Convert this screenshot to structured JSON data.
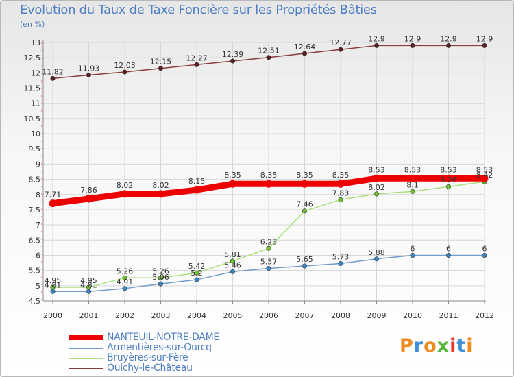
{
  "title": "Evolution du Taux de Taxe Foncière sur les Propriétés Bâties",
  "unit": "(en %)",
  "brand": {
    "text": "Proxiti",
    "letter_colors": [
      "#f08a1e",
      "#3f8fd6",
      "#f08a1e",
      "#58b63a",
      "#e8322b",
      "#3f8fd6",
      "#f08a1e"
    ]
  },
  "chart_data": {
    "type": "line",
    "title": "Evolution du Taux de Taxe Foncière sur les Propriétés Bâties",
    "ylabel": "(en %)",
    "xlabel": "",
    "x": [
      "2000",
      "2001",
      "2002",
      "2003",
      "2004",
      "2005",
      "2006",
      "2007",
      "2008",
      "2009",
      "2010",
      "2011",
      "2012"
    ],
    "ylim": [
      4.5,
      13
    ],
    "yticks": [
      "4.5",
      "5",
      "5.5",
      "6",
      "6.5",
      "7",
      "7.5",
      "8",
      "8.5",
      "9",
      "9.5",
      "10",
      "10.5",
      "11",
      "11.5",
      "12",
      "12.5",
      "13"
    ],
    "grid": true,
    "legend_position": "bottom-left",
    "series": [
      {
        "name": "NANTEUIL-NOTRE-DAME",
        "color": "#ee0000",
        "values": [
          7.71,
          7.86,
          8.02,
          8.02,
          8.15,
          8.35,
          8.35,
          8.35,
          8.35,
          8.53,
          8.53,
          8.53,
          8.53
        ],
        "labels": [
          "7.71",
          "7.86",
          "8.02",
          "8.02",
          "8.15",
          "8.35",
          "8.35",
          "8.35",
          "8.35",
          "8.53",
          "8.53",
          "8.53",
          "8.53"
        ]
      },
      {
        "name": "Armentières-sur-Ourcq",
        "color": "#6f9ccc",
        "marker_color": "#3a86c8",
        "values": [
          4.81,
          4.81,
          4.91,
          5.06,
          5.2,
          5.46,
          5.57,
          5.65,
          5.73,
          5.88,
          6,
          6,
          6
        ],
        "labels": [
          "4.81",
          "4.81",
          "4.91",
          "5.06",
          "5.2",
          "5.46",
          "5.57",
          "5.65",
          "5.73",
          "5.88",
          "6",
          "6",
          "6"
        ]
      },
      {
        "name": "Bruyères-sur-Fère",
        "color": "#a8e07e",
        "marker_color": "#6cc232",
        "values": [
          4.95,
          4.95,
          5.26,
          5.26,
          5.42,
          5.81,
          6.23,
          7.46,
          7.83,
          8.02,
          8.1,
          8.26,
          8.42
        ],
        "labels": [
          "4.95",
          "4.95",
          "5.26",
          "5.26",
          "5.42",
          "5.81",
          "6.23",
          "7.46",
          "7.83",
          "8.02",
          "8.1",
          "8.26",
          "8.42"
        ]
      },
      {
        "name": "Oulchy-le-Château",
        "color": "#8c3b3b",
        "marker_color": "#5c1f1f",
        "values": [
          11.82,
          11.93,
          12.03,
          12.15,
          12.27,
          12.39,
          12.51,
          12.64,
          12.77,
          12.9,
          12.9,
          12.9,
          12.9
        ],
        "labels": [
          "11.82",
          "11.93",
          "12.03",
          "12.15",
          "12.27",
          "12.39",
          "12.51",
          "12.64",
          "12.77",
          "12.9",
          "12.9",
          "12.9",
          "12.9"
        ]
      }
    ]
  }
}
